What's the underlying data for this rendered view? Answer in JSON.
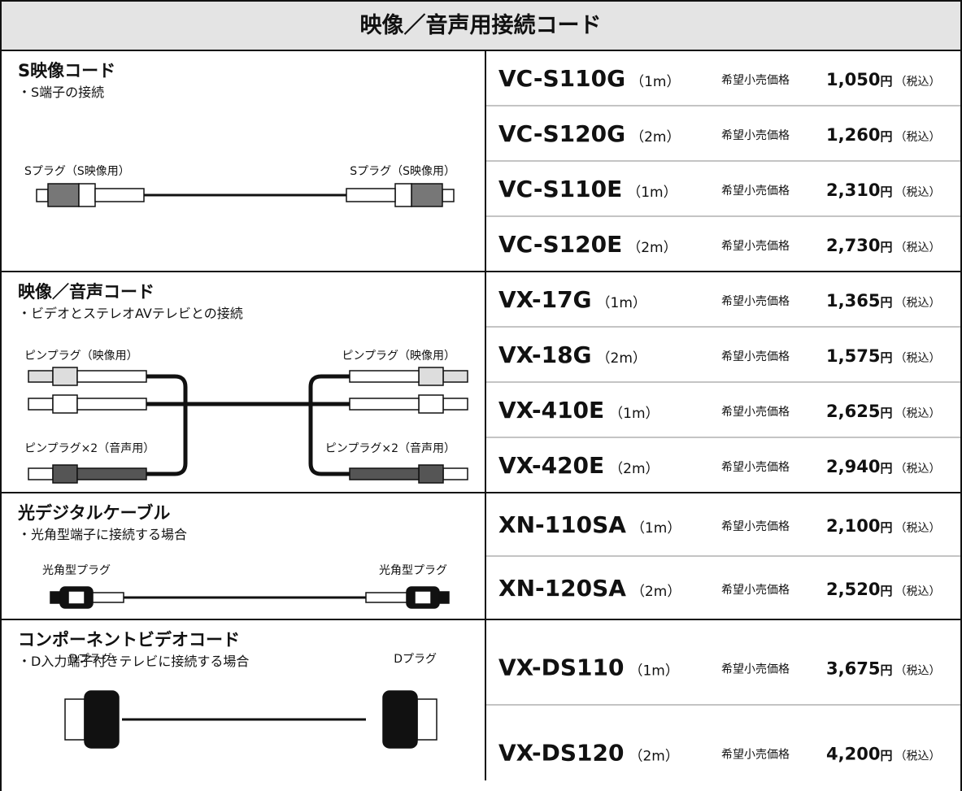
{
  "header": {
    "title": "映像／音声用接続コード"
  },
  "sections": [
    {
      "title": "S映像コード",
      "subtitle": "・S端子の接続",
      "plugs": [
        "Sプラグ（S映像用）",
        "Sプラグ（S映像用）"
      ],
      "products": [
        {
          "model": "VC-S110G",
          "length": "（1m）",
          "price_label": "希望小売価格",
          "price": "1,050",
          "currency": "円",
          "tax": "（税込）"
        },
        {
          "model": "VC-S120G",
          "length": "（2m）",
          "price_label": "希望小売価格",
          "price": "1,260",
          "currency": "円",
          "tax": "（税込）"
        },
        {
          "model": "VC-S110E",
          "length": "（1m）",
          "price_label": "希望小売価格",
          "price": "2,310",
          "currency": "円",
          "tax": "（税込）"
        },
        {
          "model": "VC-S120E",
          "length": "（2m）",
          "price_label": "希望小売価格",
          "price": "2,730",
          "currency": "円",
          "tax": "（税込）"
        }
      ]
    },
    {
      "title": "映像／音声コード",
      "subtitle": "・ビデオとステレオAVテレビとの接続",
      "plugs": [
        "ピンプラグ（映像用）",
        "ピンプラグ（映像用）",
        "ピンプラグ×2（音声用）",
        "ピンプラグ×2（音声用）"
      ],
      "products": [
        {
          "model": "VX-17G",
          "length": "（1m）",
          "price_label": "希望小売価格",
          "price": "1,365",
          "currency": "円",
          "tax": "（税込）"
        },
        {
          "model": "VX-18G",
          "length": "（2m）",
          "price_label": "希望小売価格",
          "price": "1,575",
          "currency": "円",
          "tax": "（税込）"
        },
        {
          "model": "VX-410E",
          "length": "（1m）",
          "price_label": "希望小売価格",
          "price": "2,625",
          "currency": "円",
          "tax": "（税込）"
        },
        {
          "model": "VX-420E",
          "length": "（2m）",
          "price_label": "希望小売価格",
          "price": "2,940",
          "currency": "円",
          "tax": "（税込）"
        }
      ]
    },
    {
      "title": "光デジタルケーブル",
      "subtitle": "・光角型端子に接続する場合",
      "plugs": [
        "光角型プラグ",
        "光角型プラグ"
      ],
      "products": [
        {
          "model": "XN-110SA",
          "length": "（1m）",
          "price_label": "希望小売価格",
          "price": "2,100",
          "currency": "円",
          "tax": "（税込）"
        },
        {
          "model": "XN-120SA",
          "length": "（2m）",
          "price_label": "希望小売価格",
          "price": "2,520",
          "currency": "円",
          "tax": "（税込）"
        }
      ]
    },
    {
      "title": "コンポーネントビデオコード",
      "subtitle": "・D入力端子付きテレビに接続する場合",
      "plugs": [
        "Dプラグ",
        "Dプラグ"
      ],
      "products": [
        {
          "model": "VX-DS110",
          "length": "（1m）",
          "price_label": "希望小売価格",
          "price": "3,675",
          "currency": "円",
          "tax": "（税込）"
        },
        {
          "model": "VX-DS120",
          "length": "（2m）",
          "price_label": "希望小売価格",
          "price": "4,200",
          "currency": "円",
          "tax": "（税込）"
        }
      ]
    }
  ]
}
